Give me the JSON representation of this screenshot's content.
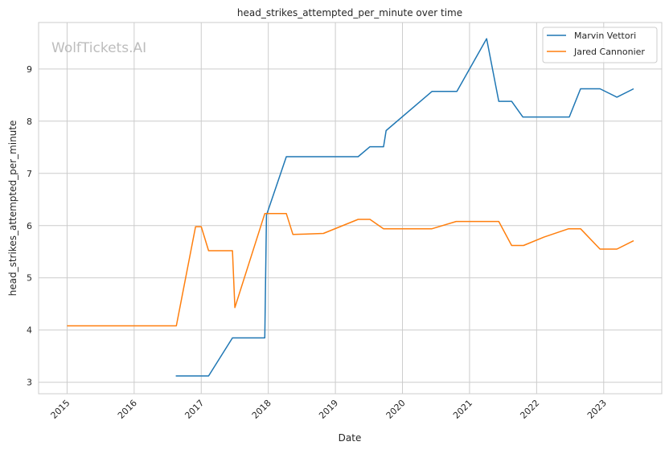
{
  "watermark": "WolfTickets.AI",
  "chart_data": {
    "type": "line",
    "title": "head_strikes_attempted_per_minute over time",
    "xlabel": "Date",
    "ylabel": "head_strikes_attempted_per_minute",
    "xlim": [
      "2014-07-30",
      "2023-11-13"
    ],
    "ylim": [
      2.78,
      9.89
    ],
    "x_ticks": [
      "2015",
      "2016",
      "2017",
      "2018",
      "2019",
      "2020",
      "2021",
      "2022",
      "2023"
    ],
    "y_ticks": [
      3,
      4,
      5,
      6,
      7,
      8,
      9
    ],
    "grid": true,
    "legend_position": "top-right",
    "series": [
      {
        "name": "Marvin Vettori",
        "color": "#1f77b4",
        "points": [
          [
            "2016-08-15",
            3.12
          ],
          [
            "2017-02-10",
            3.12
          ],
          [
            "2017-06-20",
            3.85
          ],
          [
            "2017-12-13",
            3.85
          ],
          [
            "2017-12-22",
            6.2
          ],
          [
            "2018-04-09",
            7.32
          ],
          [
            "2019-05-05",
            7.32
          ],
          [
            "2019-07-08",
            7.51
          ],
          [
            "2019-09-20",
            7.51
          ],
          [
            "2019-10-04",
            7.82
          ],
          [
            "2020-06-10",
            8.57
          ],
          [
            "2020-10-24",
            8.57
          ],
          [
            "2021-04-04",
            9.58
          ],
          [
            "2021-06-09",
            8.38
          ],
          [
            "2021-08-18",
            8.38
          ],
          [
            "2021-10-18",
            8.08
          ],
          [
            "2022-06-28",
            8.08
          ],
          [
            "2022-08-28",
            8.62
          ],
          [
            "2022-12-12",
            8.62
          ],
          [
            "2023-03-14",
            8.46
          ],
          [
            "2023-06-13",
            8.62
          ]
        ]
      },
      {
        "name": "Jared Cannonier",
        "color": "#ff7f0e",
        "points": [
          [
            "2015-01-01",
            4.08
          ],
          [
            "2016-08-18",
            4.08
          ],
          [
            "2016-12-01",
            5.98
          ],
          [
            "2017-01-01",
            5.98
          ],
          [
            "2017-02-10",
            5.52
          ],
          [
            "2017-06-20",
            5.52
          ],
          [
            "2017-07-03",
            4.43
          ],
          [
            "2017-12-13",
            6.23
          ],
          [
            "2018-04-09",
            6.23
          ],
          [
            "2018-05-15",
            5.83
          ],
          [
            "2018-10-28",
            5.85
          ],
          [
            "2019-05-05",
            6.12
          ],
          [
            "2019-07-08",
            6.12
          ],
          [
            "2019-09-20",
            5.94
          ],
          [
            "2020-06-10",
            5.94
          ],
          [
            "2020-10-20",
            6.08
          ],
          [
            "2021-06-09",
            6.08
          ],
          [
            "2021-08-18",
            5.62
          ],
          [
            "2021-10-22",
            5.62
          ],
          [
            "2022-02-10",
            5.78
          ],
          [
            "2022-06-24",
            5.94
          ],
          [
            "2022-08-28",
            5.94
          ],
          [
            "2022-12-12",
            5.55
          ],
          [
            "2023-03-14",
            5.55
          ],
          [
            "2023-06-13",
            5.71
          ]
        ]
      }
    ]
  }
}
